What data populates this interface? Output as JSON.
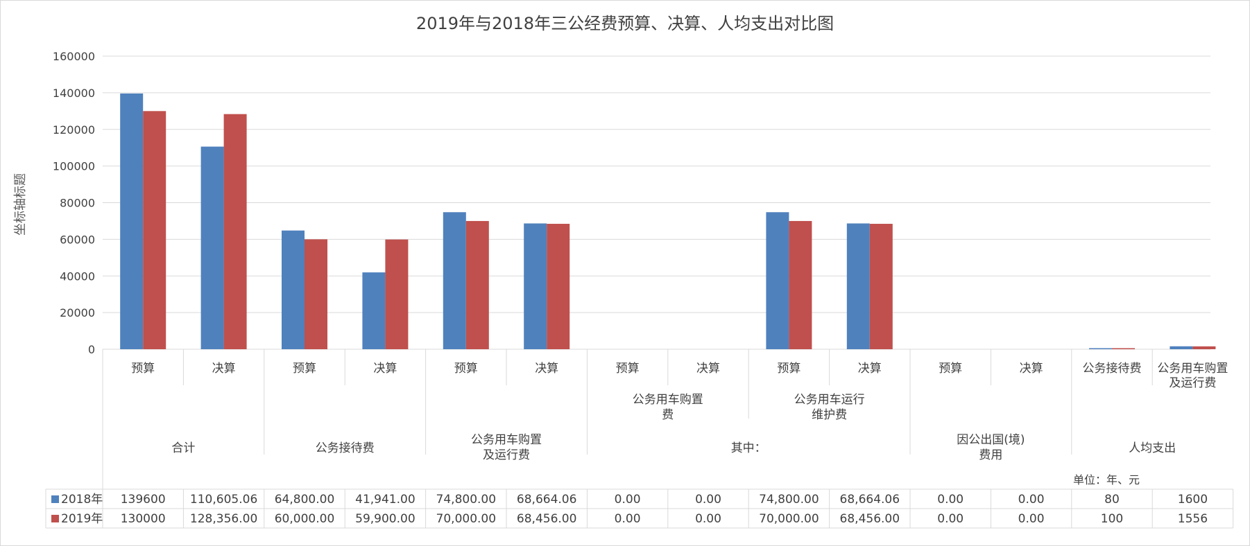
{
  "chart_data": {
    "type": "bar",
    "title": "2019年与2018年三公经费预算、决算、人均支出对比图",
    "ylabel": "坐标轴标题",
    "unit_note": "单位：年、元",
    "ylim": [
      0,
      160000
    ],
    "yticks": [
      "0",
      "20000",
      "40000",
      "60000",
      "80000",
      "100000",
      "120000",
      "140000",
      "160000"
    ],
    "grid": true,
    "categories": [
      {
        "level1": "预算",
        "level2": "合计",
        "level3": ""
      },
      {
        "level1": "决算",
        "level2": "合计",
        "level3": ""
      },
      {
        "level1": "预算",
        "level2": "公务接待费",
        "level3": ""
      },
      {
        "level1": "决算",
        "level2": "公务接待费",
        "level3": ""
      },
      {
        "level1": "预算",
        "level2": "公务用车购置及运行费",
        "level3": ""
      },
      {
        "level1": "决算",
        "level2": "公务用车购置及运行费",
        "level3": ""
      },
      {
        "level1": "预算",
        "level2": "公务用车购置费",
        "level3": "其中："
      },
      {
        "level1": "决算",
        "level2": "公务用车购置费",
        "level3": "其中："
      },
      {
        "level1": "预算",
        "level2": "公务用车运行维护费",
        "level3": "其中："
      },
      {
        "level1": "决算",
        "level2": "公务用车运行维护费",
        "level3": "其中："
      },
      {
        "level1": "预算",
        "level2": "因公出国(境)费用",
        "level3": ""
      },
      {
        "level1": "决算",
        "level2": "因公出国(境)费用",
        "level3": ""
      },
      {
        "level1": "公务接待费",
        "level2": "人均支出",
        "level3": ""
      },
      {
        "level1": "公务用车购置及运行费",
        "level2": "人均支出",
        "level3": ""
      }
    ],
    "level2_groups": [
      {
        "label": "合计",
        "start": 0,
        "end": 1,
        "row": 3
      },
      {
        "label": "公务接待费",
        "start": 2,
        "end": 3,
        "row": 3
      },
      {
        "label": "公务用车购置\n及运行费",
        "start": 4,
        "end": 5,
        "row": 3
      },
      {
        "label": "公务用车购置\n费",
        "start": 6,
        "end": 7,
        "row": 2
      },
      {
        "label": "公务用车运行\n维护费",
        "start": 8,
        "end": 9,
        "row": 2
      },
      {
        "label": "其中：",
        "start": 6,
        "end": 9,
        "row": 3
      },
      {
        "label": "因公出国(境)\n费用",
        "start": 10,
        "end": 11,
        "row": 3
      },
      {
        "label": "人均支出",
        "start": 12,
        "end": 13,
        "row": 3
      }
    ],
    "level1_labels": [
      "预算",
      "决算",
      "预算",
      "决算",
      "预算",
      "决算",
      "预算",
      "决算",
      "预算",
      "决算",
      "预算",
      "决算",
      "公务接待费",
      "公务用车购置\n及运行费"
    ],
    "series": [
      {
        "name": "2018年",
        "color": "#4f81bd",
        "values": [
          139600,
          110605.06,
          64800,
          41941,
          74800,
          68664.06,
          0,
          0,
          74800,
          68664.06,
          0,
          0,
          80,
          1600
        ],
        "labels": [
          "139600",
          "110,605.06",
          "64,800.00",
          "41,941.00",
          "74,800.00",
          "68,664.06",
          "0.00",
          "0.00",
          "74,800.00",
          "68,664.06",
          "0.00",
          "0.00",
          "80",
          "1600"
        ]
      },
      {
        "name": "2019年",
        "color": "#c0504d",
        "values": [
          130000,
          128356,
          60000,
          59900,
          70000,
          68456,
          0,
          0,
          70000,
          68456,
          0,
          0,
          100,
          1556
        ],
        "labels": [
          "130000",
          "128,356.00",
          "60,000.00",
          "59,900.00",
          "70,000.00",
          "68,456.00",
          "0.00",
          "0.00",
          "70,000.00",
          "68,456.00",
          "0.00",
          "0.00",
          "100",
          "1556"
        ]
      }
    ]
  }
}
